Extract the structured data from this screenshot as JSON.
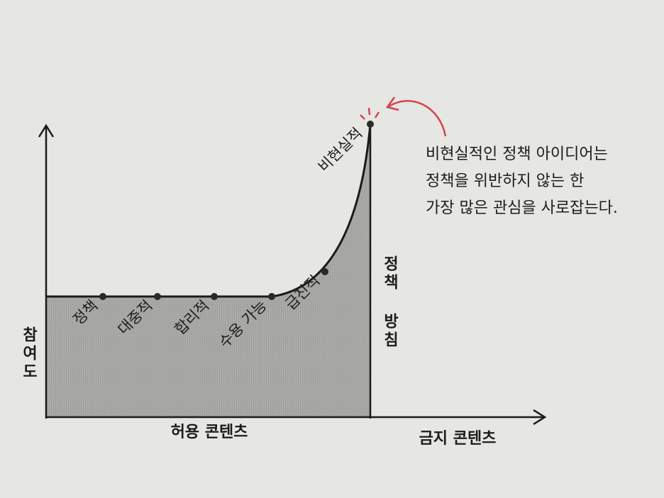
{
  "axis": {
    "y_label": "참여도",
    "x_left_label": "허용 콘텐츠",
    "x_right_label": "금지 콘텐츠",
    "boundary_label": "정책 방침"
  },
  "points": [
    {
      "label": "정책"
    },
    {
      "label": "대중적"
    },
    {
      "label": "합리적"
    },
    {
      "label": "수용 가능"
    },
    {
      "label": "급진적"
    },
    {
      "label": "비현실적"
    }
  ],
  "annotation": {
    "lines": [
      "비현실적인 정책 아이디어는",
      "정책을 위반하지 않는 한",
      "가장 많은 관심을 사로잡는다."
    ]
  }
}
